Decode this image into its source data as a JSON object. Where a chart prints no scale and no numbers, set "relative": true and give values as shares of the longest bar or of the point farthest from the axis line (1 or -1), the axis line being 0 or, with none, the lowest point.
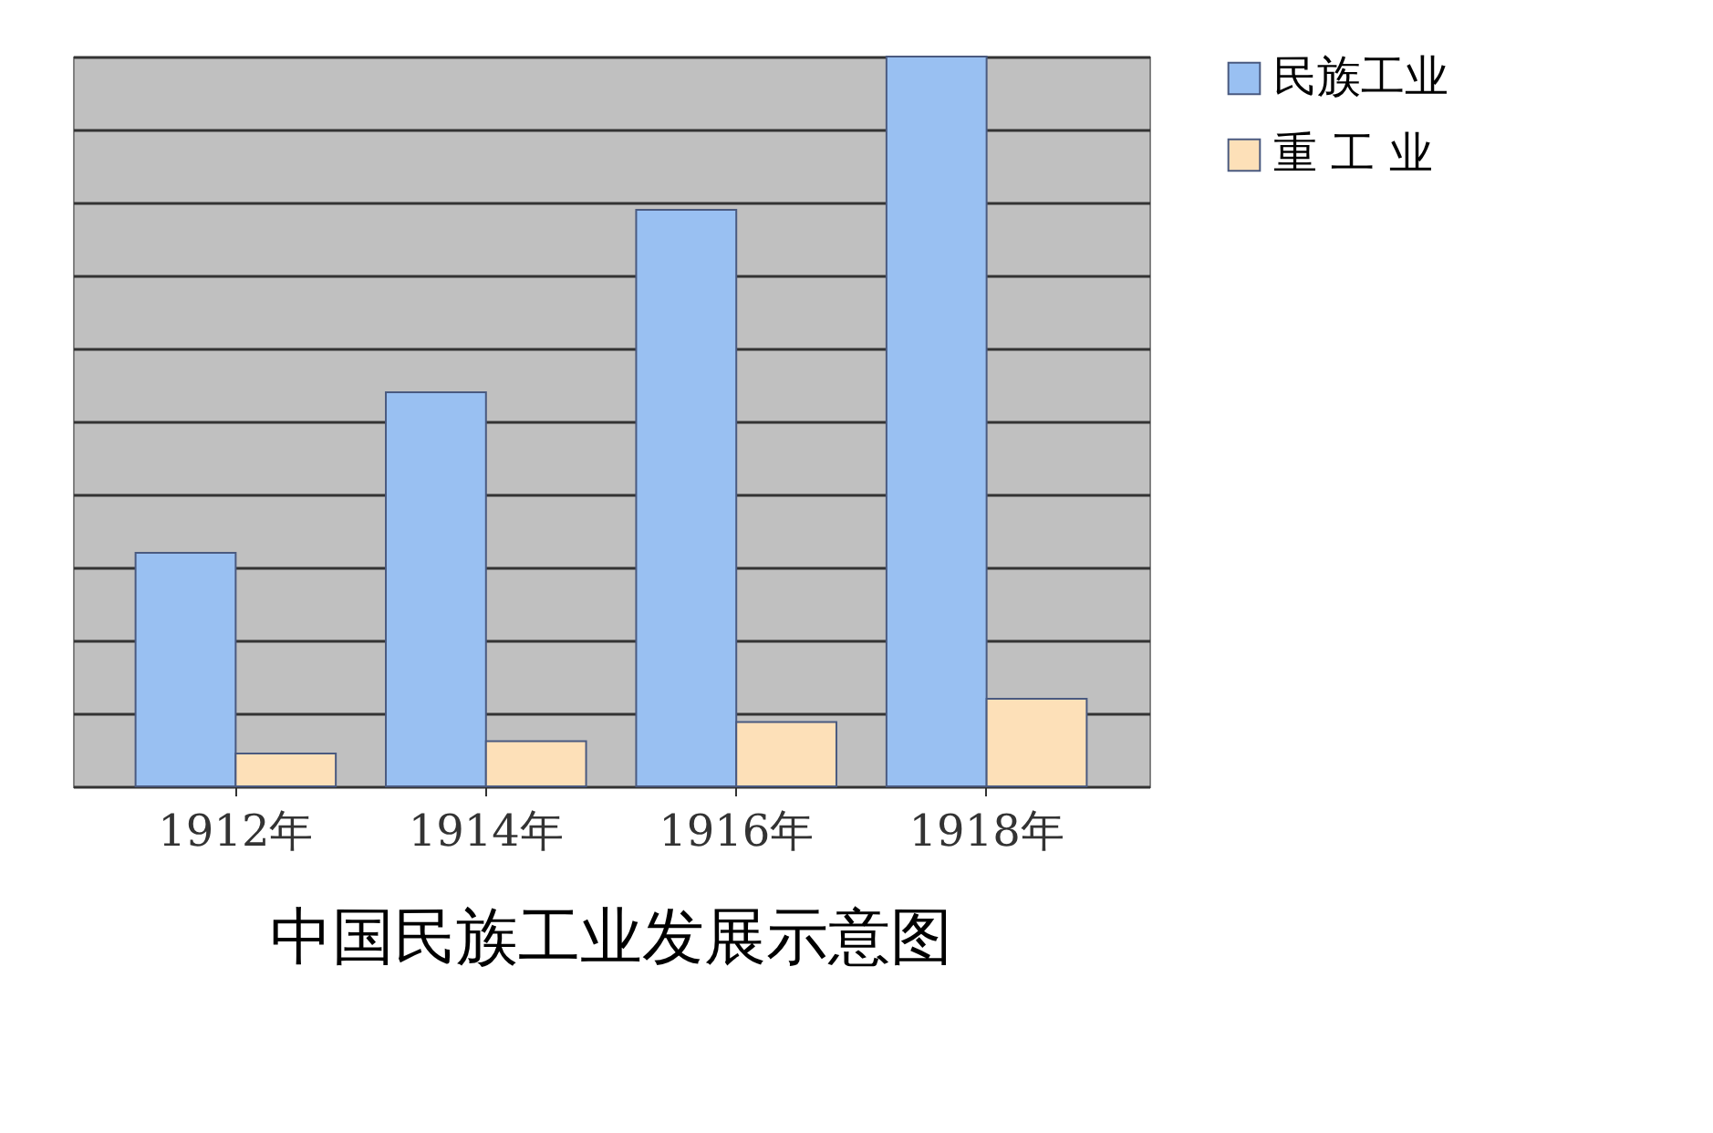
{
  "chart_data": {
    "type": "bar",
    "title": "中国民族工业发展示意图",
    "relative": true,
    "categories": [
      "1912年",
      "1914年",
      "1916年",
      "1918年"
    ],
    "series": [
      {
        "name": "民族工业",
        "color": "#99c0f2",
        "values": [
          0.32,
          0.54,
          0.79,
          1
        ]
      },
      {
        "name": "重 工 业",
        "color": "#fde0b8",
        "values": [
          0.045,
          0.062,
          0.088,
          0.12
        ]
      }
    ],
    "grid": "y",
    "legend": "top right"
  }
}
